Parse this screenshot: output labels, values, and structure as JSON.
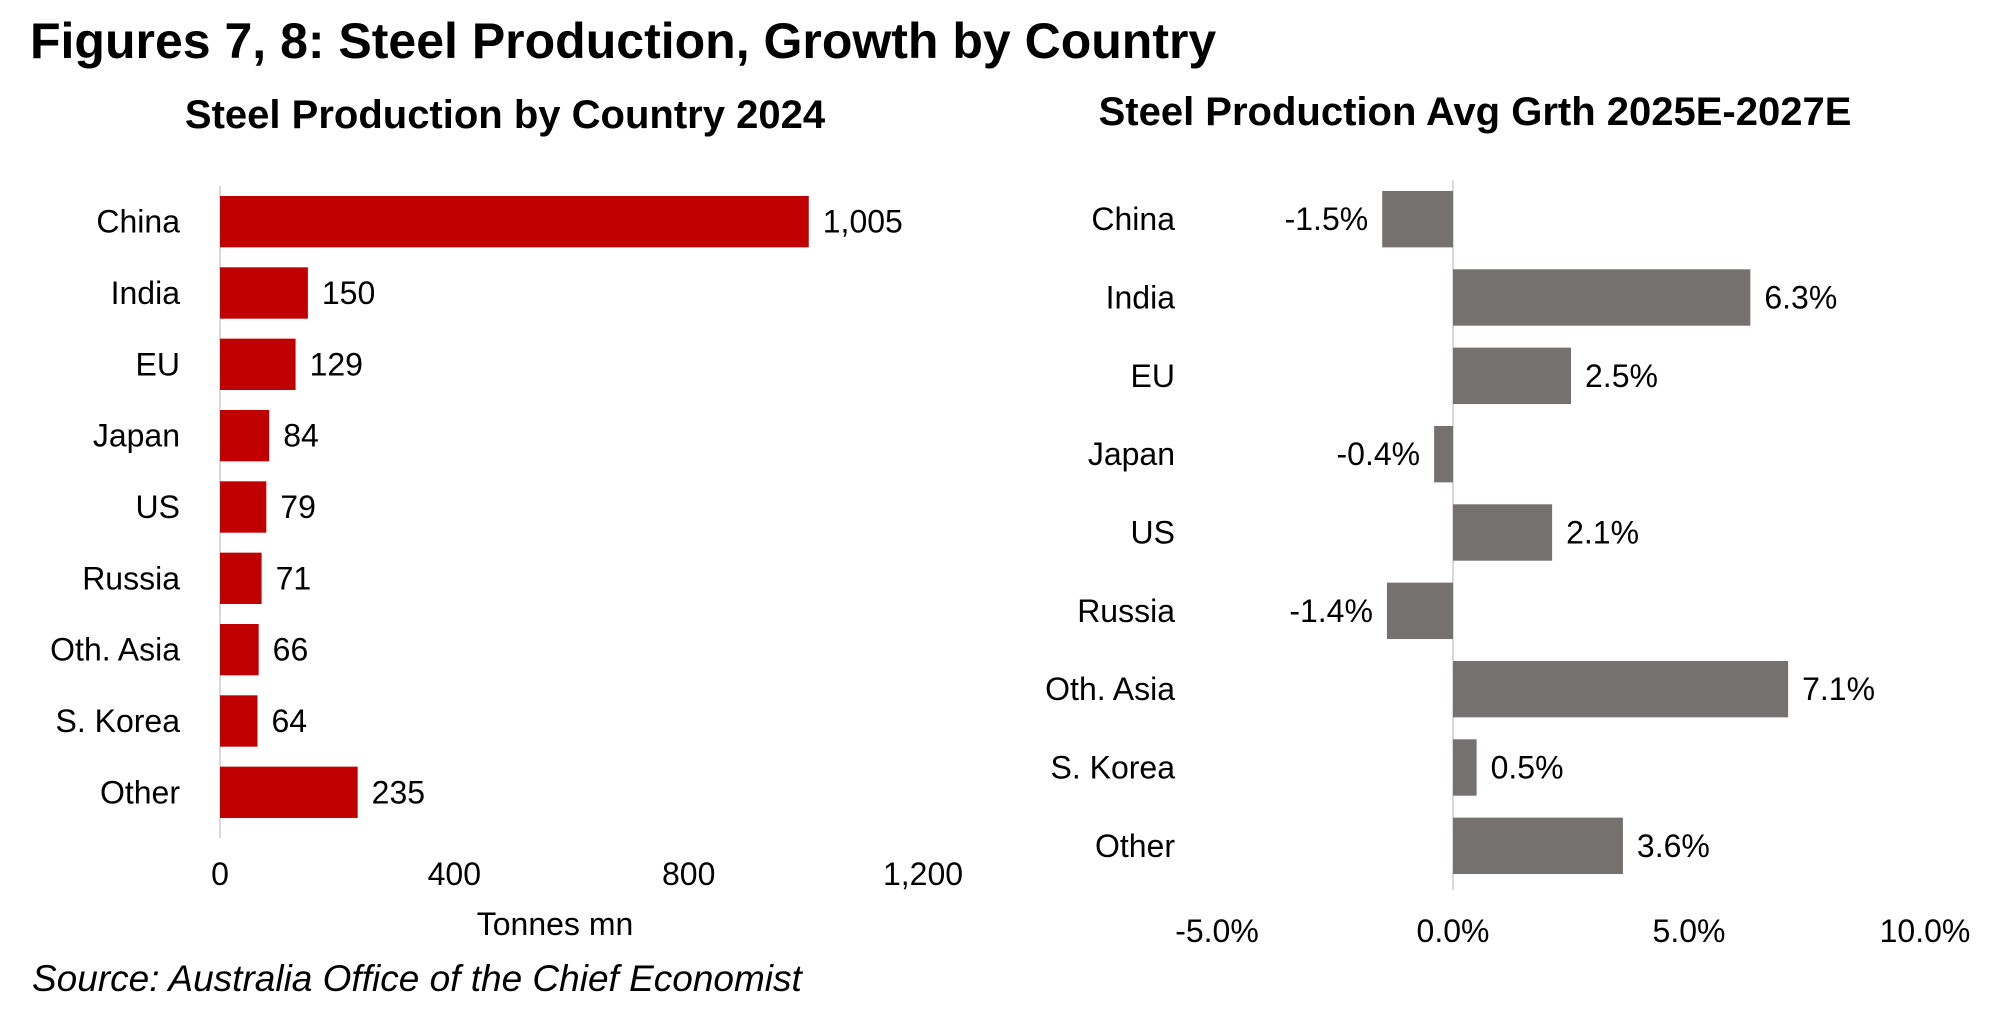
{
  "figure_title": "Figures 7, 8: Steel Production, Growth by Country",
  "source": "Source: Australia Office of the Chief Economist",
  "chart_data": [
    {
      "type": "bar",
      "orientation": "horizontal",
      "title": "Steel Production by Country 2024",
      "xlabel": "Tonnes mn",
      "ylabel": "",
      "categories": [
        "China",
        "India",
        "EU",
        "Japan",
        "US",
        "Russia",
        "Oth. Asia",
        "S. Korea",
        "Other"
      ],
      "values": [
        1005,
        150,
        129,
        84,
        79,
        71,
        66,
        64,
        235
      ],
      "value_labels": [
        "1,005",
        "150",
        "129",
        "84",
        "79",
        "71",
        "66",
        "64",
        "235"
      ],
      "xlim": [
        0,
        1200
      ],
      "ticks": [
        0,
        400,
        800,
        1200
      ],
      "tick_labels": [
        "0",
        "400",
        "800",
        "1,200"
      ],
      "color": "#c00000"
    },
    {
      "type": "bar",
      "orientation": "horizontal",
      "title": "Steel Production Avg Grth 2025E-2027E",
      "xlabel": "",
      "ylabel": "",
      "categories": [
        "China",
        "India",
        "EU",
        "Japan",
        "US",
        "Russia",
        "Oth. Asia",
        "S. Korea",
        "Other"
      ],
      "values": [
        -1.5,
        6.3,
        2.5,
        -0.4,
        2.1,
        -1.4,
        7.1,
        0.5,
        3.6
      ],
      "value_labels": [
        "-1.5%",
        "6.3%",
        "2.5%",
        "-0.4%",
        "2.1%",
        "-1.4%",
        "7.1%",
        "0.5%",
        "3.6%"
      ],
      "xlim": [
        -5,
        10
      ],
      "ticks": [
        -5,
        0,
        5,
        10
      ],
      "tick_labels": [
        "-5.0%",
        "0.0%",
        "5.0%",
        "10.0%"
      ],
      "color": "#767171"
    }
  ]
}
